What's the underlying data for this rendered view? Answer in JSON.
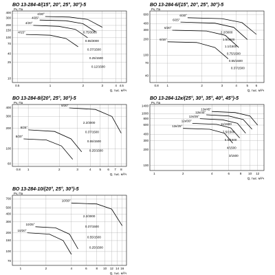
{
  "chart_data": [
    {
      "type": "line",
      "title": "ВО 13-284-4/(15°, 20°, 25°, 30°)-5",
      "ylabel": "Pv, Па",
      "xlabel": "Q, тыс. м³/ч",
      "log_scale": true,
      "grid": true,
      "color": "#000000",
      "xlim": [
        0.45,
        5
      ],
      "ylim": [
        8,
        450
      ],
      "xticks": [
        0.5,
        1,
        2,
        3,
        4,
        4.5
      ],
      "yticks": [
        10,
        25,
        40,
        70,
        100,
        150,
        200,
        300,
        400
      ],
      "series": [
        {
          "name": "4/30°",
          "x": [
            0.9,
            1.5,
            2.2,
            3.0
          ],
          "values": [
            330,
            320,
            280,
            180
          ]
        },
        {
          "name": "4/25°",
          "x": [
            0.8,
            1.4,
            2.0,
            2.6
          ],
          "values": [
            270,
            260,
            220,
            140
          ]
        },
        {
          "name": "4/20°",
          "x": [
            0.7,
            1.2,
            1.7,
            2.2
          ],
          "values": [
            200,
            190,
            160,
            100
          ]
        },
        {
          "name": "4/15°",
          "x": [
            0.6,
            1.0,
            1.4,
            1.8
          ],
          "values": [
            120,
            115,
            95,
            60
          ]
        }
      ],
      "annotations": [
        "0.75/3000",
        "0.55/3000",
        "0.37/1500",
        "0.25/1500",
        "0.12/1500"
      ]
    },
    {
      "type": "line",
      "title": "ВО 13-284-6/(15°, 20°, 25°, 30°)-5",
      "ylabel": "Pv, Па",
      "xlabel": "Q, тыс. м³/ч",
      "log_scale": true,
      "grid": true,
      "color": "#000000",
      "xlim": [
        0.7,
        7
      ],
      "ylim": [
        30,
        700
      ],
      "xticks": [
        0.8,
        1,
        2,
        3,
        4,
        5,
        6
      ],
      "yticks": [
        40,
        70,
        100,
        200,
        300,
        400,
        600
      ],
      "series": [
        {
          "name": "6/30°",
          "x": [
            1.5,
            3,
            4.5,
            6
          ],
          "values": [
            520,
            500,
            420,
            250
          ]
        },
        {
          "name": "6/25°",
          "x": [
            1.3,
            2.6,
            3.8,
            5
          ],
          "values": [
            430,
            410,
            340,
            200
          ]
        },
        {
          "name": "6/20°",
          "x": [
            1.1,
            2.2,
            3.2,
            4.2
          ],
          "values": [
            300,
            290,
            240,
            140
          ]
        },
        {
          "name": "6/15°",
          "x": [
            1,
            1.8,
            2.6,
            3.4
          ],
          "values": [
            180,
            175,
            140,
            85
          ]
        }
      ],
      "annotations": [
        "2.2/3000",
        "1.5/3000",
        "1.1/1500",
        "0.75/1500",
        "0.55/1500",
        "0.37/1500"
      ]
    },
    {
      "type": "line",
      "title": "ВО 13-284-8/(20°, 25°, 30°)-5",
      "ylabel": "Pv, Па",
      "xlabel": "Q, тыс. м³/ч",
      "log_scale": true,
      "grid": true,
      "color": "#000000",
      "xlim": [
        0.7,
        9
      ],
      "ylim": [
        55,
        450
      ],
      "xticks": [
        0.8,
        1,
        2,
        3,
        4,
        5,
        6,
        7,
        8
      ],
      "yticks": [
        60,
        100,
        200,
        300,
        400
      ],
      "series": [
        {
          "name": "8/30°",
          "x": [
            2.5,
            4.5,
            6.5,
            8
          ],
          "values": [
            400,
            380,
            300,
            170
          ]
        },
        {
          "name": "8/25°",
          "x": [
            1,
            1.8,
            2.6,
            3.3
          ],
          "values": [
            190,
            180,
            140,
            90
          ]
        },
        {
          "name": "8/20°",
          "x": [
            0.9,
            1.5,
            2.1,
            2.7
          ],
          "values": [
            140,
            135,
            110,
            70
          ]
        }
      ],
      "annotations": [
        "2.2/3000",
        "0.37/1500",
        "0.55/1500",
        "0.25/1500"
      ]
    },
    {
      "type": "line",
      "title": "ВО 13-284-12к/(25°, 30°, 35°, 40°, 45°)-5",
      "ylabel": "Pv, Па",
      "xlabel": "Q, тыс. м³/ч",
      "log_scale": true,
      "grid": true,
      "color": "#000000",
      "xlim": [
        0.9,
        14
      ],
      "ylim": [
        80,
        1500
      ],
      "xticks": [
        1,
        2,
        4,
        6,
        8,
        10,
        12
      ],
      "yticks": [
        100,
        200,
        300,
        400,
        600,
        800,
        1000,
        1400
      ],
      "series": [
        {
          "name": "12к/45°",
          "x": [
            4,
            7,
            10,
            12
          ],
          "values": [
            1100,
            1050,
            900,
            600
          ]
        },
        {
          "name": "12к/40°",
          "x": [
            3.5,
            6,
            8.5,
            10.5
          ],
          "values": [
            950,
            900,
            770,
            500
          ]
        },
        {
          "name": "12к/35°",
          "x": [
            3,
            5.2,
            7.4,
            9
          ],
          "values": [
            800,
            760,
            650,
            420
          ]
        },
        {
          "name": "12к/30°",
          "x": [
            2.5,
            4.5,
            6.3,
            7.8
          ],
          "values": [
            650,
            620,
            530,
            340
          ]
        },
        {
          "name": "12к/25°",
          "x": [
            2,
            3.8,
            5.4,
            6.6
          ],
          "values": [
            520,
            500,
            420,
            270
          ]
        }
      ],
      "annotations": [
        "11/1500",
        "7.5/1500",
        "5.5/1500",
        "4/1500",
        "3/1500"
      ]
    },
    {
      "type": "line",
      "title": "ВО 13-284-10/(20°, 25°, 30°)-5",
      "ylabel": "Pv, Па",
      "xlabel": "Q, тыс. м³/ч",
      "log_scale": true,
      "grid": true,
      "color": "#000000",
      "xlim": [
        0.8,
        18
      ],
      "ylim": [
        60,
        800
      ],
      "xticks": [
        1,
        2,
        4,
        6,
        8,
        10,
        12,
        14,
        16
      ],
      "yticks": [
        70,
        100,
        150,
        200,
        300,
        400,
        500,
        700
      ],
      "series": [
        {
          "name": "10/30°",
          "x": [
            4,
            8,
            12,
            16
          ],
          "values": [
            600,
            580,
            480,
            260
          ]
        },
        {
          "name": "10/25°",
          "x": [
            1.5,
            2.6,
            3.8,
            4.8
          ],
          "values": [
            250,
            240,
            190,
            110
          ]
        },
        {
          "name": "10/20°",
          "x": [
            1.2,
            2.2,
            3.2,
            4
          ],
          "values": [
            200,
            190,
            150,
            90
          ]
        }
      ],
      "annotations": [
        "2.2/3000",
        "0.37/1500",
        "0.55/1500",
        "0.25/1500"
      ]
    }
  ]
}
